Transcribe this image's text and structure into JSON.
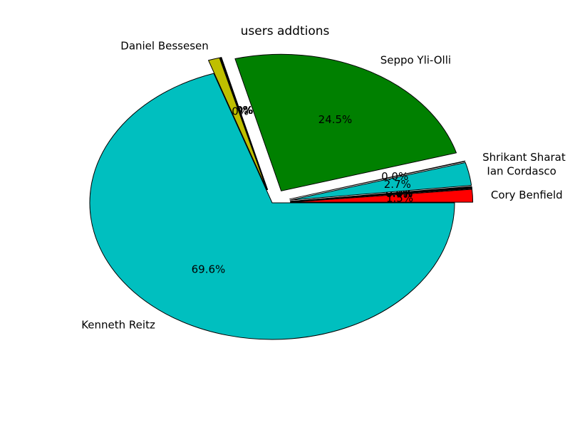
{
  "chart_data": {
    "type": "pie",
    "title": "users addtions",
    "slices": [
      {
        "label": "Cory Benfield",
        "pct_label": "1.5%",
        "value": 1.5,
        "color": "#ff0000"
      },
      {
        "label": "",
        "pct_label": "0.0%",
        "value": 0.03,
        "color": "#000000"
      },
      {
        "label": "",
        "pct_label": "0.0%",
        "value": 0.03,
        "color": "#000000"
      },
      {
        "label": "",
        "pct_label": "0.0%",
        "value": 0.03,
        "color": "#000000"
      },
      {
        "label": "",
        "pct_label": "0.0%",
        "value": 0.03,
        "color": "#000000"
      },
      {
        "label": "",
        "pct_label": "0.0%",
        "value": 0.03,
        "color": "#000000"
      },
      {
        "label": "",
        "pct_label": "0.1%",
        "value": 0.05,
        "color": "#000000"
      },
      {
        "label": "",
        "pct_label": "0.0%",
        "value": 0.03,
        "color": "#000000"
      },
      {
        "label": "Ian Cordasco",
        "pct_label": "2.7%",
        "value": 2.7,
        "color": "#00bfbf"
      },
      {
        "label": "Shrikant Sharat",
        "pct_label": "0.0%",
        "value": 0.05,
        "color": "#00bfbf"
      },
      {
        "label": "Seppo Yli-Olli",
        "pct_label": "24.5%",
        "value": 24.5,
        "color": "#008000"
      },
      {
        "label": "",
        "pct_label": "0.0%",
        "value": 0.03,
        "color": "#0000ff"
      },
      {
        "label": "",
        "pct_label": "0.0%",
        "value": 0.03,
        "color": "#ff00ff"
      },
      {
        "label": "",
        "pct_label": "0.0%",
        "value": 0.03,
        "color": "#00bfbf"
      },
      {
        "label": "",
        "pct_label": "0.0%",
        "value": 0.03,
        "color": "#bfbf00"
      },
      {
        "label": "Daniel Bessesen",
        "pct_label": "1.0%",
        "value": 1.0,
        "color": "#bfbf00"
      },
      {
        "label": "Kenneth Reitz",
        "pct_label": "69.6%",
        "value": 69.6,
        "color": "#00bfbf"
      }
    ],
    "start_angle_deg": 0,
    "direction": "counterclockwise",
    "legend": "none",
    "grid": false
  }
}
